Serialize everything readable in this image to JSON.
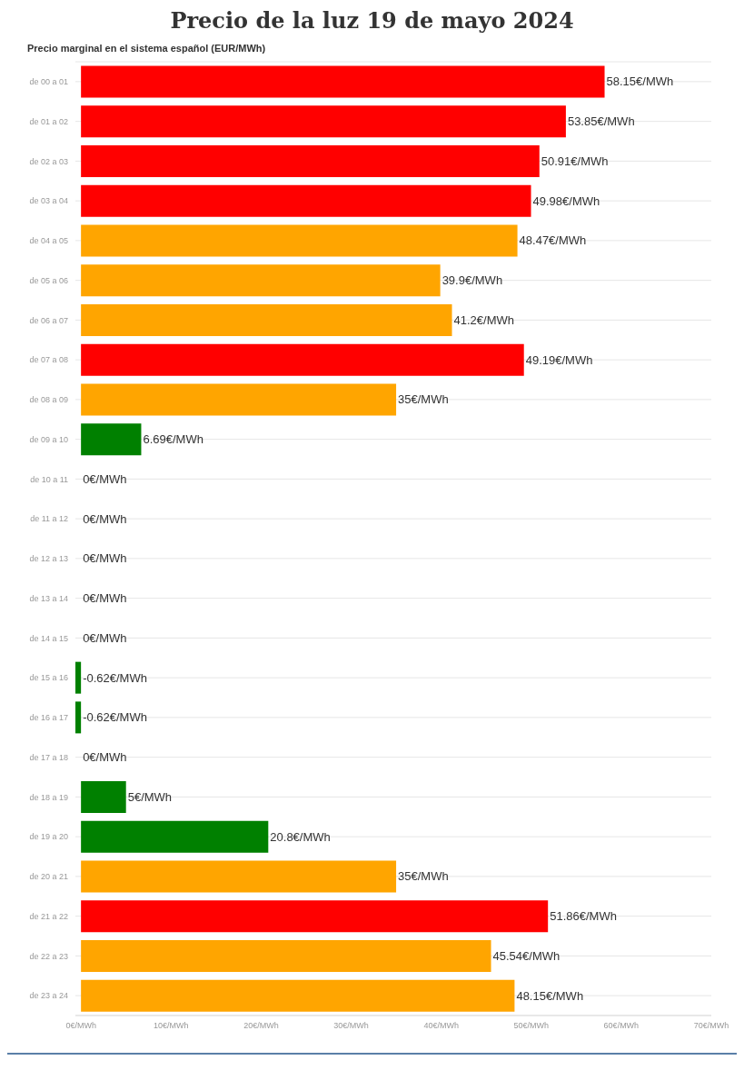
{
  "chart_data": {
    "type": "bar",
    "orientation": "horizontal",
    "title": "Precio de la luz 19 de mayo 2024",
    "subtitle": "Precio marginal en el sistema español (EUR/MWh)",
    "categories": [
      "de 00 a 01",
      "de 01 a 02",
      "de 02 a 03",
      "de 03 a 04",
      "de 04 a 05",
      "de 05 a 06",
      "de 06 a 07",
      "de 07 a 08",
      "de 08 a 09",
      "de 09 a 10",
      "de 10 a 11",
      "de 11 a 12",
      "de 12 a 13",
      "de 13 a 14",
      "de 14 a 15",
      "de 15 a 16",
      "de 16 a 17",
      "de 17 a 18",
      "de 18 a 19",
      "de 19 a 20",
      "de 20 a 21",
      "de 21 a 22",
      "de 22 a 23",
      "de 23 a 24"
    ],
    "values": [
      58.15,
      53.85,
      50.91,
      49.98,
      48.47,
      39.9,
      41.2,
      49.19,
      35,
      6.69,
      0,
      0,
      0,
      0,
      0,
      -0.62,
      -0.62,
      0,
      5,
      20.8,
      35,
      51.86,
      45.54,
      48.15
    ],
    "colors": [
      "#ff0000",
      "#ff0000",
      "#ff0000",
      "#ff0000",
      "#ffa500",
      "#ffa500",
      "#ffa500",
      "#ff0000",
      "#ffa500",
      "#008000",
      "#008000",
      "#008000",
      "#008000",
      "#008000",
      "#008000",
      "#008000",
      "#008000",
      "#008000",
      "#008000",
      "#008000",
      "#ffa500",
      "#ff0000",
      "#ffa500",
      "#ffa500"
    ],
    "value_labels": [
      "58.15€/MWh",
      "53.85€/MWh",
      "50.91€/MWh",
      "49.98€/MWh",
      "48.47€/MWh",
      "39.9€/MWh",
      "41.2€/MWh",
      "49.19€/MWh",
      "35€/MWh",
      "6.69€/MWh",
      "0€/MWh",
      "0€/MWh",
      "0€/MWh",
      "0€/MWh",
      "0€/MWh",
      "-0.62€/MWh",
      "-0.62€/MWh",
      "0€/MWh",
      "5€/MWh",
      "20.8€/MWh",
      "35€/MWh",
      "51.86€/MWh",
      "45.54€/MWh",
      "48.15€/MWh"
    ],
    "xlim": [
      -0.62,
      70
    ],
    "xticks": [
      {
        "value": 0,
        "label": "0€/MWh"
      },
      {
        "value": 10,
        "label": "10€/MWh"
      },
      {
        "value": 20,
        "label": "20€/MWh"
      },
      {
        "value": 30,
        "label": "30€/MWh"
      },
      {
        "value": 40,
        "label": "40€/MWh"
      },
      {
        "value": 50,
        "label": "50€/MWh"
      },
      {
        "value": 60,
        "label": "60€/MWh"
      },
      {
        "value": 70,
        "label": "70€/MWh"
      }
    ],
    "grid": "y"
  }
}
